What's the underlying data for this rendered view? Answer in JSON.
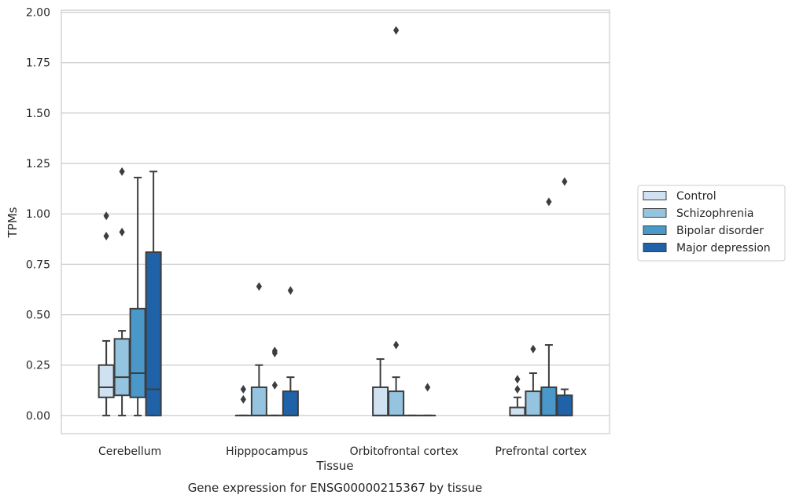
{
  "chart_data": {
    "type": "box",
    "title": "",
    "caption": "Gene expression for ENSG00000215367 by tissue",
    "xlabel": "Tissue",
    "ylabel": "TPMs",
    "ylim": [
      -0.09,
      2.01
    ],
    "yticks": [
      "0.00",
      "0.25",
      "0.50",
      "0.75",
      "1.00",
      "1.25",
      "1.50",
      "1.75",
      "2.00"
    ],
    "grid": true,
    "legend_position": "right",
    "categories": [
      "Cerebellum",
      "Hipppocampus",
      "Orbitofrontal cortex",
      "Prefrontal cortex"
    ],
    "series": [
      {
        "name": "Control",
        "color": "#d0e1f2",
        "boxes": [
          {
            "whisker_low": 0.0,
            "q1": 0.09,
            "median": 0.14,
            "q3": 0.25,
            "whisker_high": 0.37,
            "outliers": [
              0.89,
              0.99
            ]
          },
          {
            "whisker_low": 0.0,
            "q1": 0.0,
            "median": 0.0,
            "q3": 0.0,
            "whisker_high": 0.0,
            "outliers": [
              0.08,
              0.13
            ]
          },
          {
            "whisker_low": 0.0,
            "q1": 0.0,
            "median": 0.0,
            "q3": 0.14,
            "whisker_high": 0.28,
            "outliers": []
          },
          {
            "whisker_low": 0.0,
            "q1": 0.0,
            "median": 0.0,
            "q3": 0.04,
            "whisker_high": 0.09,
            "outliers": [
              0.13,
              0.18
            ]
          }
        ]
      },
      {
        "name": "Schizophrenia",
        "color": "#94c4df",
        "boxes": [
          {
            "whisker_low": 0.0,
            "q1": 0.1,
            "median": 0.19,
            "q3": 0.38,
            "whisker_high": 0.42,
            "outliers": [
              0.91,
              1.21
            ]
          },
          {
            "whisker_low": 0.0,
            "q1": 0.0,
            "median": 0.0,
            "q3": 0.14,
            "whisker_high": 0.25,
            "outliers": [
              0.64
            ]
          },
          {
            "whisker_low": 0.0,
            "q1": 0.0,
            "median": 0.0,
            "q3": 0.12,
            "whisker_high": 0.19,
            "outliers": [
              0.35,
              1.91
            ]
          },
          {
            "whisker_low": 0.0,
            "q1": 0.0,
            "median": 0.0,
            "q3": 0.12,
            "whisker_high": 0.21,
            "outliers": [
              0.33
            ]
          }
        ]
      },
      {
        "name": "Bipolar disorder",
        "color": "#4a98c9",
        "boxes": [
          {
            "whisker_low": 0.0,
            "q1": 0.09,
            "median": 0.21,
            "q3": 0.53,
            "whisker_high": 1.18,
            "outliers": []
          },
          {
            "whisker_low": 0.0,
            "q1": 0.0,
            "median": 0.0,
            "q3": 0.0,
            "whisker_high": 0.0,
            "outliers": [
              0.15,
              0.31,
              0.32
            ]
          },
          {
            "whisker_low": 0.0,
            "q1": 0.0,
            "median": 0.0,
            "q3": 0.0,
            "whisker_high": 0.0,
            "outliers": []
          },
          {
            "whisker_low": 0.0,
            "q1": 0.0,
            "median": 0.0,
            "q3": 0.14,
            "whisker_high": 0.35,
            "outliers": [
              1.06
            ]
          }
        ]
      },
      {
        "name": "Major depression",
        "color": "#2062a8",
        "boxes": [
          {
            "whisker_low": 0.0,
            "q1": 0.0,
            "median": 0.13,
            "q3": 0.81,
            "whisker_high": 1.21,
            "outliers": []
          },
          {
            "whisker_low": 0.0,
            "q1": 0.0,
            "median": 0.0,
            "q3": 0.12,
            "whisker_high": 0.19,
            "outliers": [
              0.62
            ]
          },
          {
            "whisker_low": 0.0,
            "q1": 0.0,
            "median": 0.0,
            "q3": 0.0,
            "whisker_high": 0.0,
            "outliers": [
              0.14
            ]
          },
          {
            "whisker_low": 0.0,
            "q1": 0.0,
            "median": 0.0,
            "q3": 0.1,
            "whisker_high": 0.13,
            "outliers": [
              1.16
            ]
          }
        ]
      }
    ]
  }
}
